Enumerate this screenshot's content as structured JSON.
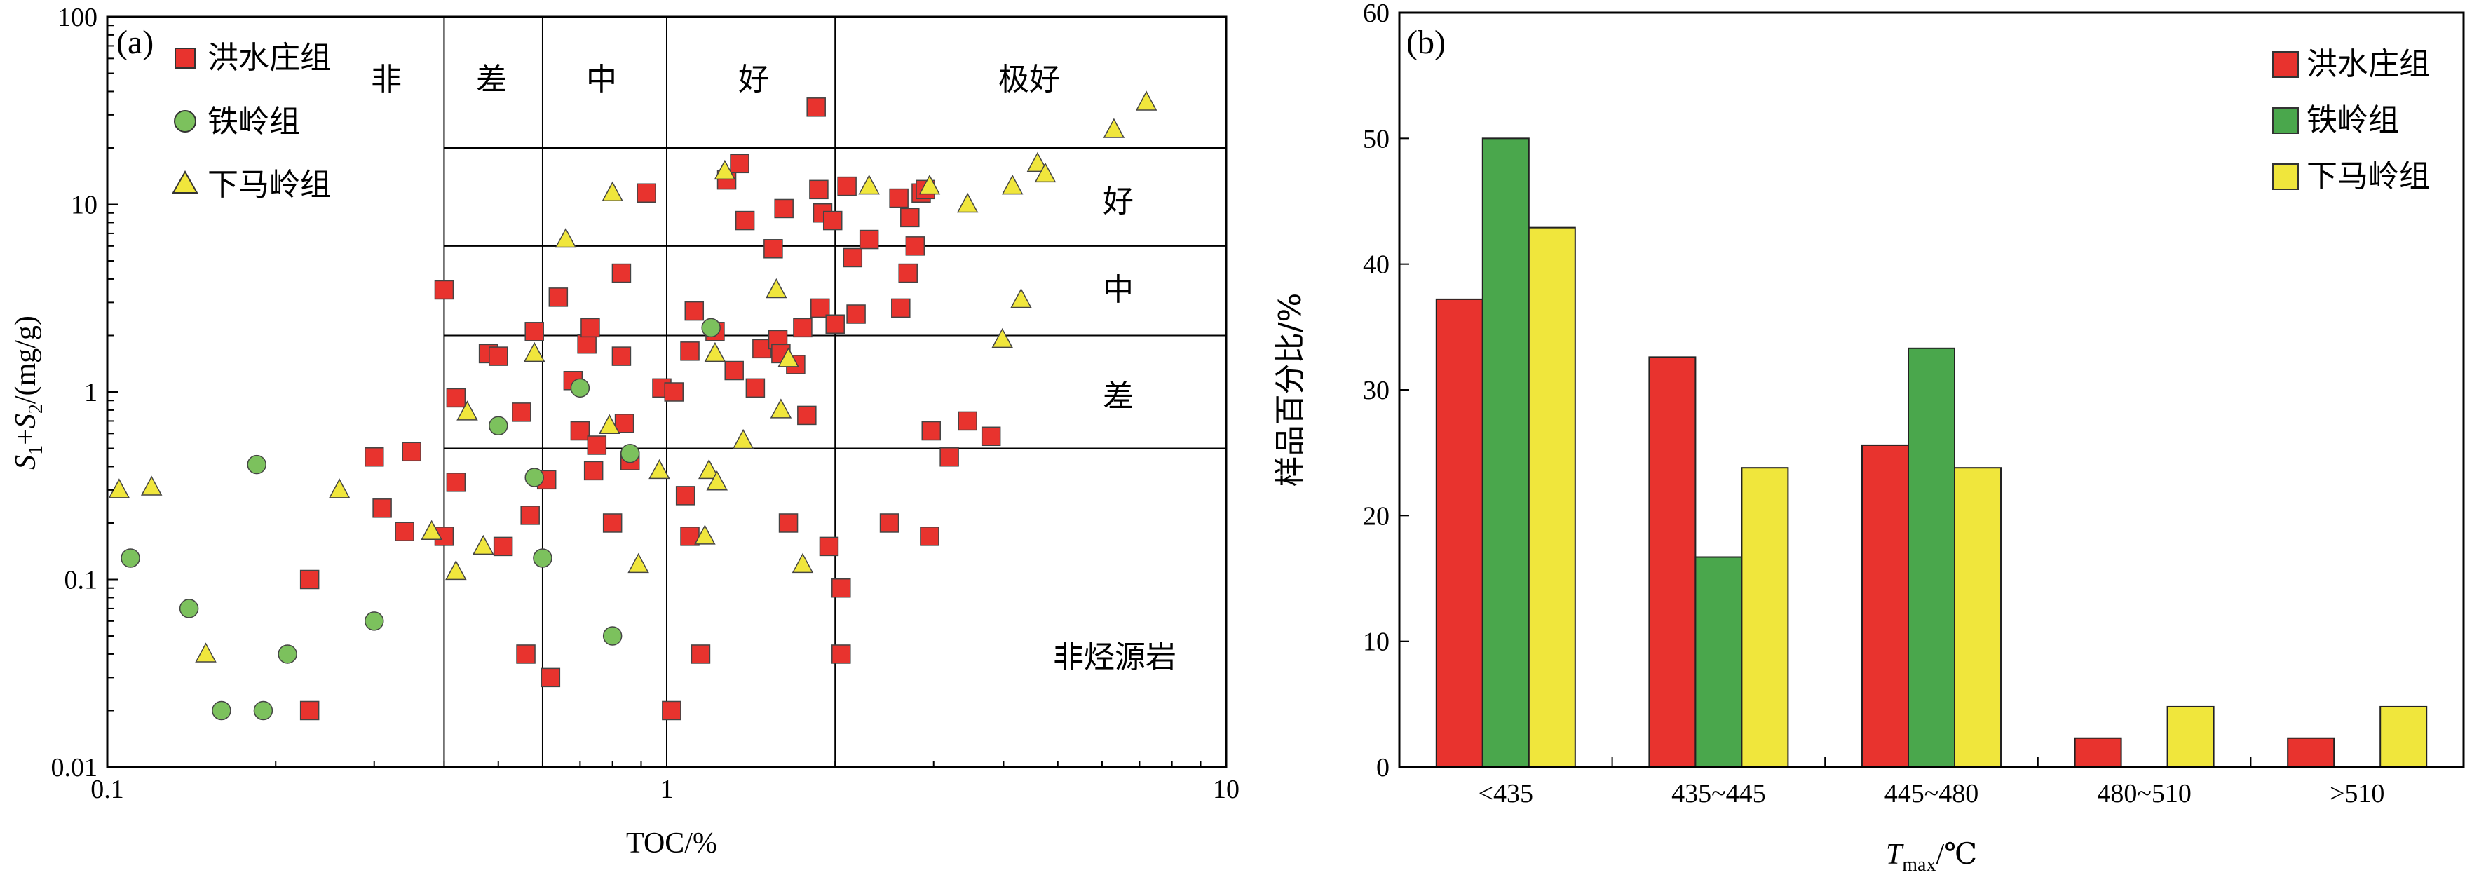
{
  "chart_data": [
    {
      "type": "scatter",
      "panel_label": "(a)",
      "xlabel": "TOC/%",
      "ylabel_parts": {
        "s1": "S",
        "s1sub": "1",
        "plus": "+",
        "s2": "S",
        "s2sub": "2",
        "unit": "/(mg/g)"
      },
      "xscale": "log",
      "yscale": "log",
      "xlim": [
        0.1,
        10
      ],
      "ylim": [
        0.01,
        100
      ],
      "x_ticks": [
        "0.1",
        "1",
        "10"
      ],
      "y_ticks": [
        "0.01",
        "0.1",
        "1",
        "10",
        "100"
      ],
      "legend_position": "top-left",
      "boundaries": {
        "toc": [
          0.4,
          0.6,
          1,
          2
        ],
        "s1s2": [
          0.5,
          2,
          6,
          20
        ]
      },
      "zone_labels_top": [
        "非",
        "差",
        "中",
        "好",
        "极好"
      ],
      "zone_labels_right": [
        "好",
        "中",
        "差"
      ],
      "bottom_right_label": "非烃源岩",
      "series": [
        {
          "name": "洪水庄组",
          "marker": "square",
          "color": "#e8332e",
          "points": [
            [
              0.23,
              0.1
            ],
            [
              0.23,
              0.02
            ],
            [
              0.3,
              0.45
            ],
            [
              0.31,
              0.24
            ],
            [
              0.34,
              0.18
            ],
            [
              0.35,
              0.48
            ],
            [
              0.4,
              3.5
            ],
            [
              0.4,
              0.17
            ],
            [
              0.42,
              0.33
            ],
            [
              0.42,
              0.93
            ],
            [
              0.48,
              1.6
            ],
            [
              0.5,
              1.55
            ],
            [
              0.51,
              0.15
            ],
            [
              0.55,
              0.78
            ],
            [
              0.56,
              0.04
            ],
            [
              0.57,
              0.22
            ],
            [
              0.58,
              2.1
            ],
            [
              0.61,
              0.34
            ],
            [
              0.62,
              0.03
            ],
            [
              0.64,
              3.2
            ],
            [
              0.68,
              1.15
            ],
            [
              0.7,
              0.62
            ],
            [
              0.72,
              1.8
            ],
            [
              0.73,
              2.2
            ],
            [
              0.74,
              0.38
            ],
            [
              0.75,
              0.52
            ],
            [
              0.8,
              0.2
            ],
            [
              0.83,
              4.3
            ],
            [
              0.83,
              1.55
            ],
            [
              0.84,
              0.68
            ],
            [
              0.86,
              0.43
            ],
            [
              0.92,
              11.5
            ],
            [
              0.98,
              1.05
            ],
            [
              1.02,
              0.02
            ],
            [
              1.03,
              1.0
            ],
            [
              1.08,
              0.28
            ],
            [
              1.1,
              0.17
            ],
            [
              1.1,
              1.65
            ],
            [
              1.12,
              2.7
            ],
            [
              1.15,
              0.04
            ],
            [
              1.22,
              2.1
            ],
            [
              1.28,
              13.5
            ],
            [
              1.32,
              1.3
            ],
            [
              1.35,
              16.5
            ],
            [
              1.38,
              8.2
            ],
            [
              1.44,
              1.05
            ],
            [
              1.48,
              1.7
            ],
            [
              1.55,
              5.8
            ],
            [
              1.58,
              1.9
            ],
            [
              1.6,
              1.6
            ],
            [
              1.62,
              9.5
            ],
            [
              1.65,
              0.2
            ],
            [
              1.7,
              1.4
            ],
            [
              1.75,
              2.2
            ],
            [
              1.78,
              0.75
            ],
            [
              1.85,
              33
            ],
            [
              1.87,
              12
            ],
            [
              1.88,
              2.8
            ],
            [
              1.9,
              9.0
            ],
            [
              1.95,
              0.15
            ],
            [
              1.98,
              8.2
            ],
            [
              2.0,
              2.3
            ],
            [
              2.05,
              0.09
            ],
            [
              2.05,
              0.04
            ],
            [
              2.1,
              12.5
            ],
            [
              2.15,
              5.2
            ],
            [
              2.18,
              2.6
            ],
            [
              2.3,
              6.5
            ],
            [
              2.5,
              0.2
            ],
            [
              2.6,
              10.8
            ],
            [
              2.62,
              2.8
            ],
            [
              2.7,
              4.3
            ],
            [
              2.72,
              8.5
            ],
            [
              2.78,
              6.0
            ],
            [
              2.85,
              11.5
            ],
            [
              2.9,
              12
            ],
            [
              2.95,
              0.17
            ],
            [
              2.97,
              0.62
            ],
            [
              3.2,
              0.45
            ],
            [
              3.45,
              0.7
            ],
            [
              3.8,
              0.58
            ]
          ]
        },
        {
          "name": "铁岭组",
          "marker": "circle",
          "color": "#7cc15d",
          "points": [
            [
              0.11,
              0.13
            ],
            [
              0.14,
              0.07
            ],
            [
              0.16,
              0.02
            ],
            [
              0.185,
              0.41
            ],
            [
              0.19,
              0.02
            ],
            [
              0.21,
              0.04
            ],
            [
              0.3,
              0.06
            ],
            [
              0.5,
              0.66
            ],
            [
              0.58,
              0.35
            ],
            [
              0.6,
              0.13
            ],
            [
              0.7,
              1.05
            ],
            [
              0.8,
              0.05
            ],
            [
              0.86,
              0.47
            ],
            [
              1.2,
              2.2
            ]
          ]
        },
        {
          "name": "下马岭组",
          "marker": "triangle",
          "color": "#f0e63c",
          "points": [
            [
              0.105,
              0.3
            ],
            [
              0.12,
              0.31
            ],
            [
              0.15,
              0.04
            ],
            [
              0.26,
              0.3
            ],
            [
              0.38,
              0.18
            ],
            [
              0.42,
              0.11
            ],
            [
              0.44,
              0.78
            ],
            [
              0.47,
              0.15
            ],
            [
              0.58,
              1.6
            ],
            [
              0.66,
              6.5
            ],
            [
              0.79,
              0.66
            ],
            [
              0.8,
              11.5
            ],
            [
              0.89,
              0.12
            ],
            [
              0.97,
              0.38
            ],
            [
              1.17,
              0.17
            ],
            [
              1.19,
              0.38
            ],
            [
              1.22,
              1.6
            ],
            [
              1.23,
              0.33
            ],
            [
              1.27,
              15
            ],
            [
              1.37,
              0.55
            ],
            [
              1.57,
              3.5
            ],
            [
              1.6,
              0.8
            ],
            [
              1.65,
              1.5
            ],
            [
              1.75,
              0.12
            ],
            [
              2.3,
              12.5
            ],
            [
              2.95,
              12.5
            ],
            [
              3.45,
              10
            ],
            [
              3.98,
              1.9
            ],
            [
              4.15,
              12.5
            ],
            [
              4.3,
              3.1
            ],
            [
              4.6,
              16.5
            ],
            [
              4.75,
              14.5
            ],
            [
              6.3,
              25
            ],
            [
              7.2,
              35
            ]
          ]
        }
      ]
    },
    {
      "type": "bar",
      "panel_label": "(b)",
      "xlabel_parts": {
        "var": "T",
        "sub": "max",
        "unit": "/℃"
      },
      "ylabel": "样品百分比/%",
      "ylim": [
        0,
        60
      ],
      "y_ticks": [
        "0",
        "10",
        "20",
        "30",
        "40",
        "50",
        "60"
      ],
      "legend_position": "top-right",
      "categories": [
        "<435",
        "435~445",
        "445~480",
        "480~510",
        ">510"
      ],
      "series": [
        {
          "name": "洪水庄组",
          "color": "#e8332e",
          "values": [
            37.2,
            32.6,
            25.6,
            2.3,
            2.3
          ]
        },
        {
          "name": "铁岭组",
          "color": "#4aa74c",
          "values": [
            50,
            16.7,
            33.3,
            0,
            0
          ]
        },
        {
          "name": "下马岭组",
          "color": "#f0e63c",
          "values": [
            42.9,
            23.8,
            23.8,
            4.8,
            4.8
          ]
        }
      ]
    }
  ]
}
